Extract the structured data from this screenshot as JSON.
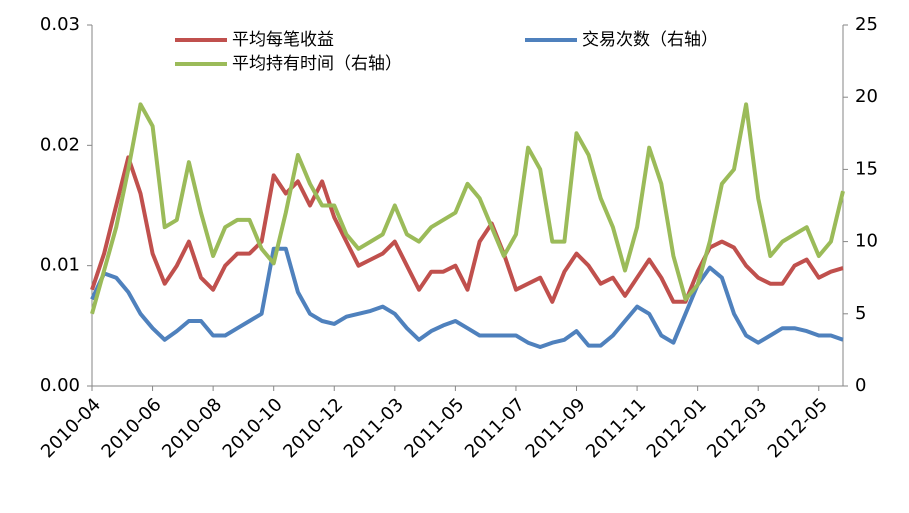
{
  "chart_data": {
    "type": "line",
    "categories": [
      "2010-04",
      null,
      null,
      null,
      null,
      "2010-06",
      null,
      null,
      null,
      null,
      "2010-08",
      null,
      null,
      null,
      null,
      "2010-10",
      null,
      null,
      null,
      null,
      "2010-12",
      null,
      null,
      null,
      null,
      "2011-03",
      null,
      null,
      null,
      null,
      "2011-05",
      null,
      null,
      null,
      null,
      "2011-07",
      null,
      null,
      null,
      null,
      "2011-09",
      null,
      null,
      null,
      null,
      "2011-11",
      null,
      null,
      null,
      null,
      "2012-01",
      null,
      null,
      null,
      null,
      "2012-03",
      null,
      null,
      null,
      null,
      "2012-05",
      null,
      null
    ],
    "series": [
      {
        "name": "平均每笔收益",
        "color": "#c0504d",
        "values": [
          0.008,
          0.011,
          0.015,
          0.019,
          0.016,
          0.011,
          0.0085,
          0.01,
          0.012,
          0.009,
          0.008,
          0.01,
          0.011,
          0.011,
          0.012,
          0.0175,
          0.016,
          0.017,
          0.015,
          0.017,
          0.014,
          0.012,
          0.01,
          0.0105,
          0.011,
          0.012,
          0.01,
          0.008,
          0.0095,
          0.0095,
          0.01,
          0.008,
          0.012,
          0.0135,
          0.011,
          0.008,
          0.0085,
          0.009,
          0.007,
          0.0095,
          0.011,
          0.01,
          0.0085,
          0.009,
          0.0075,
          0.009,
          0.0105,
          0.009,
          0.007,
          0.007,
          0.0095,
          0.0115,
          0.012,
          0.0115,
          0.01,
          0.009,
          0.0085,
          0.0085,
          0.01,
          0.0105,
          0.009,
          0.0095,
          0.0098
        ]
      },
      {
        "name": "交易次数（右轴）",
        "color": "#4f81bd",
        "axis": "y2",
        "values": [
          6,
          7.8,
          7.5,
          6.5,
          5,
          4,
          3.2,
          3.8,
          4.5,
          4.5,
          3.5,
          3.5,
          4,
          4.5,
          5,
          9.5,
          9.5,
          6.5,
          5,
          4.5,
          4.3,
          4.8,
          5,
          5.2,
          5.5,
          5,
          4,
          3.2,
          3.8,
          4.2,
          4.5,
          4,
          3.5,
          3.5,
          3.5,
          3.5,
          3,
          2.7,
          3,
          3.2,
          3.8,
          2.8,
          2.8,
          3.5,
          4.5,
          5.5,
          5,
          3.5,
          3,
          5,
          7,
          8.2,
          7.5,
          5,
          3.5,
          3,
          3.5,
          4,
          4,
          3.8,
          3.5,
          3.5,
          3.2
        ]
      },
      {
        "name": "平均持有时间（右轴）",
        "color": "#9bbb59",
        "axis": "y2",
        "values": [
          5,
          8,
          11,
          15,
          19.5,
          18,
          11,
          11.5,
          15.5,
          12,
          9,
          11,
          11.5,
          11.5,
          9.5,
          8.5,
          12,
          16,
          14,
          12.5,
          12.5,
          10.5,
          9.5,
          10,
          10.5,
          12.5,
          10.5,
          10,
          11,
          11.5,
          12,
          14,
          13,
          11,
          9,
          10.5,
          16.5,
          15,
          10,
          10,
          17.5,
          16,
          13,
          11,
          8,
          11,
          16.5,
          14,
          9,
          6,
          7,
          10,
          14,
          15,
          19.5,
          13,
          9,
          10,
          10.5,
          11,
          9,
          10,
          13.5
        ]
      }
    ],
    "ylim": [
      0,
      0.03
    ],
    "yticks": [
      {
        "value": 0,
        "label": "0.00"
      },
      0.01,
      0.02,
      0.03
    ],
    "y2lim": [
      0,
      25
    ],
    "y2ticks": [
      0,
      5,
      10,
      15,
      20,
      25
    ],
    "legend": "top",
    "grid": false
  }
}
